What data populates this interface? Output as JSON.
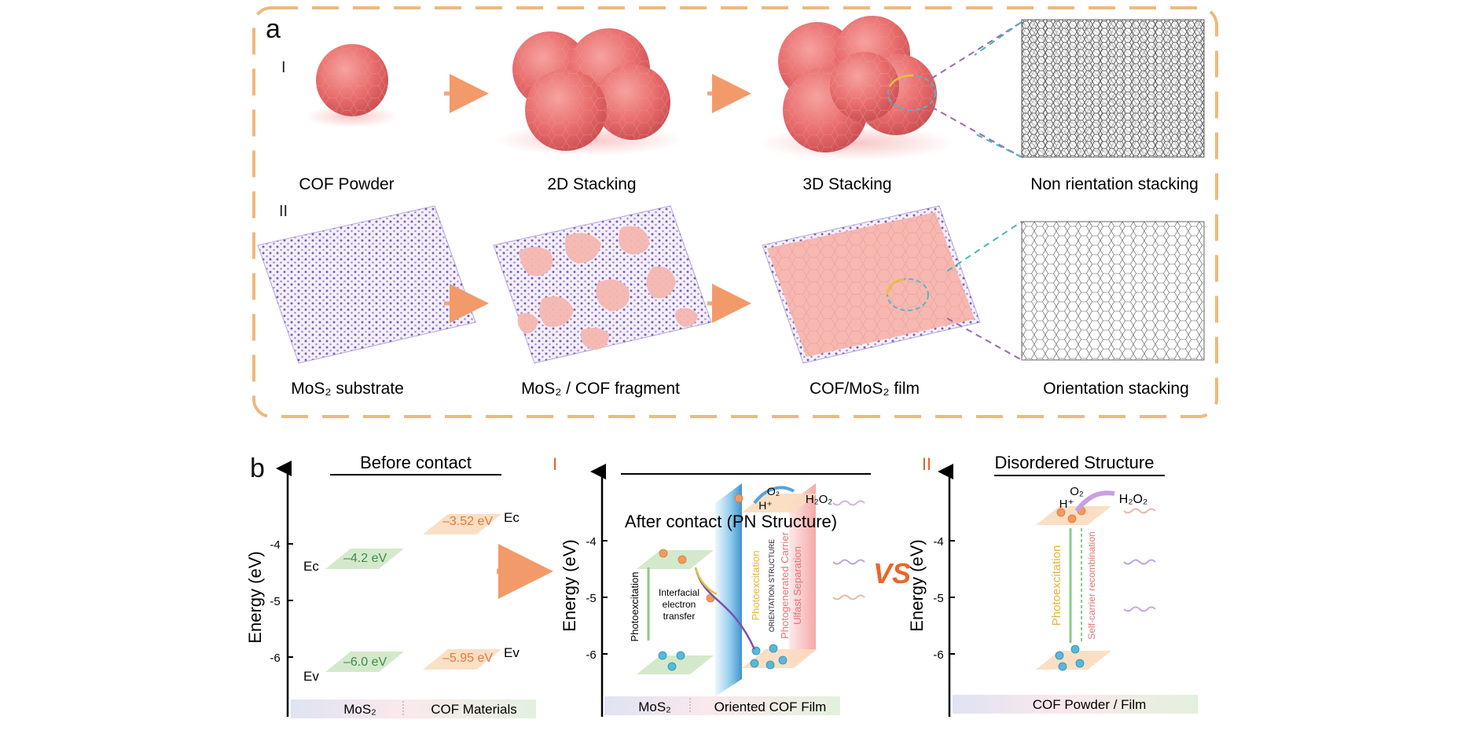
{
  "panel_a": {
    "letter": "a",
    "row_I": "I",
    "row_II": "II",
    "captions": [
      "COF Powder",
      "2D Stacking",
      "3D Stacking",
      "Non rientation stacking",
      "MoS₂ substrate",
      "MoS₂ / COF fragment",
      "COF/MoS₂ film",
      "Orientation stacking"
    ]
  },
  "panel_b": {
    "letter": "b",
    "before": {
      "title": "Before contact",
      "ylabel": "Energy (eV)",
      "ticks": [
        "-4",
        "-5",
        "-6"
      ],
      "ec_label": "Eᴄ",
      "ev_label": "Eᴠ",
      "mos2_ec": "–4.2 eV",
      "mos2_ev": "–6.0 eV",
      "cof_ec": "–3.52 eV",
      "cof_ev": "–5.95 eV",
      "bar_left": "MoS₂",
      "bar_right": "COF Materials"
    },
    "after": {
      "marker": "I",
      "title": "After contact (PN Structure)",
      "ylabel": "Energy (eV)",
      "ticks": [
        "-4",
        "-5",
        "-6"
      ],
      "photoexcitation": "Photoexcitation",
      "interfacial": [
        "Interfacial",
        "electron",
        "transfer"
      ],
      "orientation": "ORIENTATION STRUCTURE",
      "v_photo": "Photoexcitation",
      "v_carrier": "Photogenerated Carrier",
      "v_sep": "Ulfast Separation",
      "o2": "O₂",
      "h": "H⁺",
      "h2o2": "H₂O₂",
      "bar_left": "MoS₂",
      "bar_right": "Oriented COF Film"
    },
    "vs": "VS",
    "disordered": {
      "marker": "II",
      "title": "Disordered Structure",
      "ylabel": "Energy (eV)",
      "ticks": [
        "-4",
        "-5",
        "-6"
      ],
      "photoexcitation": "Photoexcitation",
      "recomb": "Self-carrier recombination",
      "o2": "O₂",
      "h": "H⁺",
      "h2o2": "H₂O₂",
      "bar": "COF Powder / Film"
    }
  },
  "colors": {
    "dash_border": "#eeb97c",
    "arrow": "#f2a57a",
    "cof_pink": "#f7b8b1",
    "sphere": "#ec7a7a",
    "mos2_dot": "#7b5fb5",
    "green_plate": "#cfe7c6",
    "orange_plate": "#fbdcbf",
    "orange_text": "#e07a3a",
    "green_text": "#3f8a4a",
    "red_marker": "#e0622f",
    "electron": "#f29a5c",
    "hole": "#57b8d8"
  }
}
